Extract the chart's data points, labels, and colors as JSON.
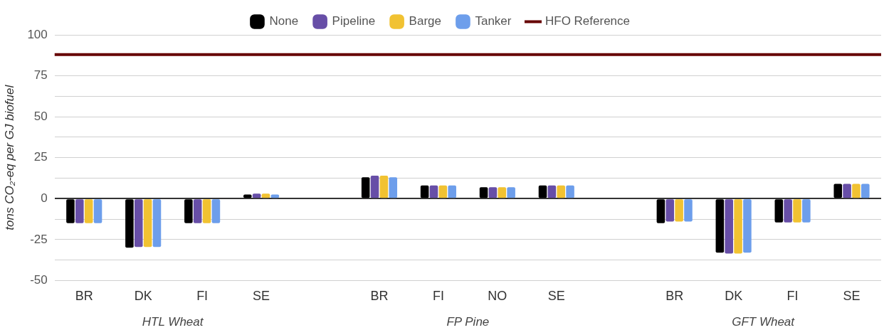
{
  "chart_data": {
    "type": "bar",
    "ylabel": "tons CO₂-eq per GJ biofuel",
    "categories": [
      "BR",
      "DK",
      "FI",
      "SE",
      null,
      "BR",
      "FI",
      "NO",
      "SE",
      null,
      "BR",
      "DK",
      "FI",
      "SE"
    ],
    "series": [
      {
        "name": "None",
        "color": "#000000",
        "values": [
          -15,
          -30,
          -15,
          2.5,
          null,
          13,
          8,
          7,
          8,
          null,
          -15,
          -33,
          -14.5,
          9
        ]
      },
      {
        "name": "Pipeline",
        "color": "#674ea7",
        "values": [
          -15,
          -29.5,
          -15,
          3,
          null,
          14,
          8,
          7,
          8,
          null,
          -14,
          -33.5,
          -14.5,
          9
        ]
      },
      {
        "name": "Barge",
        "color": "#f1c232",
        "values": [
          -15,
          -29.5,
          -15,
          3,
          null,
          14,
          8,
          7,
          8,
          null,
          -14,
          -33.5,
          -14.5,
          9
        ]
      },
      {
        "name": "Tanker",
        "color": "#6d9eeb",
        "values": [
          -15,
          -29.5,
          -15,
          2.5,
          null,
          13,
          8,
          7,
          8,
          null,
          -14,
          -33,
          -14.5,
          9
        ]
      }
    ],
    "ref_lines": [
      {
        "axis": "y",
        "value": 88,
        "label": "HFO Reference",
        "color": "#660000"
      }
    ],
    "annotations": [
      "HTL Wheat",
      "FP Pine",
      "GFT Wheat"
    ],
    "ylim": [
      -50,
      100
    ],
    "yticks": [
      -50,
      {
        "value": -37.5,
        "label": null
      },
      -25,
      {
        "value": -12.5,
        "label": null
      },
      0,
      {
        "value": 12.5,
        "label": null
      },
      25,
      {
        "value": 37.5,
        "label": null
      },
      50,
      {
        "value": 62.5,
        "label": null
      },
      75,
      {
        "value": 87.5,
        "label": null
      },
      100
    ],
    "grid": "y",
    "legend": "top"
  }
}
